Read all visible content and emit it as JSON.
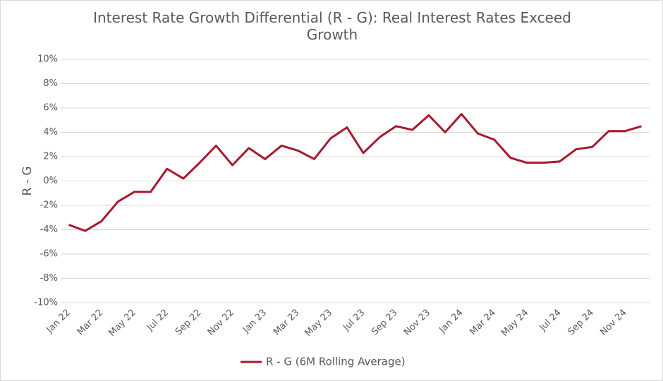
{
  "chart_data": {
    "type": "line",
    "title": "Interest Rate Growth Differential (R - G): Real Interest Rates Exceed Growth",
    "ylabel": "R - G",
    "categories": [
      "Jan 22",
      null,
      "Mar 22",
      null,
      "May 22",
      null,
      "Jul 22",
      null,
      "Sep 22",
      null,
      "Nov 22",
      null,
      "Jan 23",
      null,
      "Mar 23",
      null,
      "May 23",
      null,
      "Jul 23",
      null,
      "Sep 23",
      null,
      "Nov 23",
      null,
      "Jan 24",
      null,
      "Mar 24",
      null,
      "May 24",
      null,
      "Jul 24",
      null,
      "Sep 24",
      null,
      "Nov 24",
      null
    ],
    "series": [
      {
        "name": "R - G (6M Rolling Average)",
        "color": "#a6192e",
        "values": [
          -3.6,
          -4.1,
          -3.3,
          -1.7,
          -0.9,
          -0.9,
          1.0,
          0.2,
          1.5,
          2.9,
          1.3,
          2.7,
          1.8,
          2.9,
          2.5,
          1.8,
          3.5,
          4.4,
          2.3,
          3.6,
          4.5,
          4.2,
          5.4,
          4.0,
          5.5,
          3.9,
          3.4,
          1.9,
          1.5,
          1.5,
          1.6,
          2.6,
          2.8,
          4.1,
          4.1,
          4.5
        ]
      }
    ],
    "ylim": [
      -10,
      10
    ],
    "yticks": [
      {
        "value": -10,
        "label": "-10%"
      },
      {
        "value": -8,
        "label": "-8%"
      },
      {
        "value": -6,
        "label": "-6%"
      },
      {
        "value": -4,
        "label": "-4%"
      },
      {
        "value": -2,
        "label": "-2%"
      },
      {
        "value": 0,
        "label": "0%"
      },
      {
        "value": 2,
        "label": "2%"
      },
      {
        "value": 4,
        "label": "4%"
      },
      {
        "value": 6,
        "label": "6%"
      },
      {
        "value": 8,
        "label": "8%"
      },
      {
        "value": 10,
        "label": "10%"
      }
    ],
    "grid": true,
    "legend": "bottom"
  }
}
